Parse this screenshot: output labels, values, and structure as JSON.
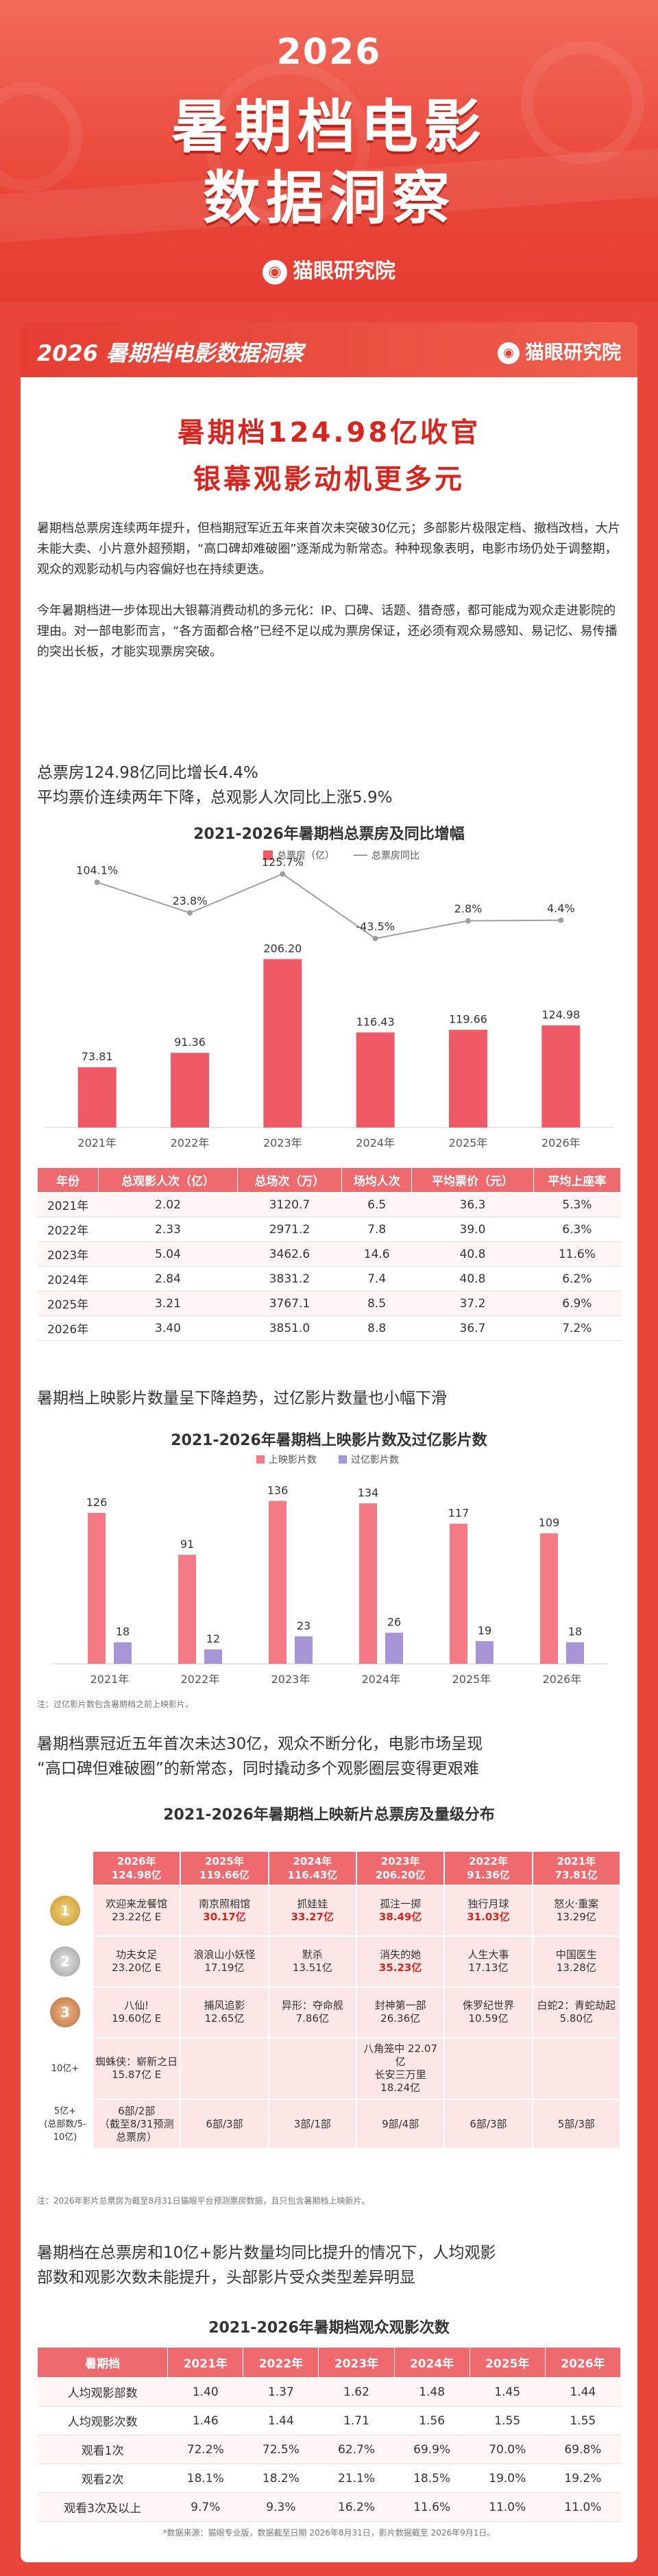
{
  "hero": {
    "year": "2026",
    "title_line1": "暑期档电影",
    "title_line2": "数据洞察",
    "brand": "猫眼研究院"
  },
  "card_header": {
    "title": "2026 暑期档电影数据洞察",
    "brand": "猫眼研究院"
  },
  "headline": {
    "line1": "暑期档124.98亿收官",
    "line2": "银幕观影动机更多元"
  },
  "intro": {
    "p1": "暑期档总票房连续两年提升，但档期冠军近五年来首次未突破30亿元；多部影片极限定档、撤档改档，大片未能大卖、小片意外超预期，“高口碑却难破圈”逐渐成为新常态。种种现象表明，电影市场仍处于调整期，观众的观影动机与内容偏好也在持续更迭。",
    "p2": "今年暑期档进一步体现出大银幕消费动机的多元化：IP、口碑、话题、猎奇感，都可能成为观众走进影院的理由。对一部电影而言，“各方面都合格”已经不足以成为票房保证，还必须有观众易感知、易记忆、易传播的突出长板，才能实现票房突破。"
  },
  "section1": {
    "line1": "总票房124.98亿同比增长4.4%",
    "line2": "平均票价连续两年下降，总观影人次同比上涨5.9%"
  },
  "chart_data": [
    {
      "type": "bar",
      "title": "2021-2026年暑期档总票房及同比增幅",
      "categories": [
        "2021年",
        "2022年",
        "2023年",
        "2024年",
        "2025年",
        "2026年"
      ],
      "series": [
        {
          "name": "总票房（亿）",
          "values": [
            73.81,
            91.36,
            206.2,
            116.43,
            119.66,
            124.98
          ],
          "labels": [
            "73.81",
            "91.36",
            "206.20",
            "116.43",
            "119.66",
            "124.98"
          ]
        },
        {
          "name": "总票房同比",
          "type": "line",
          "values": [
            104.1,
            23.8,
            125.7,
            -43.5,
            2.8,
            4.4
          ],
          "labels": [
            "104.1%",
            "23.8%",
            "125.7%",
            "-43.5%",
            "2.8%",
            "4.4%"
          ]
        }
      ],
      "legend": "top-center"
    },
    {
      "type": "table",
      "columns": [
        "年份",
        "总观影人次（亿）",
        "总场次（万）",
        "场均人次",
        "平均票价（元）",
        "平均上座率"
      ],
      "rows": [
        [
          "2021年",
          "2.02",
          "3120.7",
          "6.5",
          "36.3",
          "5.3%"
        ],
        [
          "2022年",
          "2.33",
          "2971.2",
          "7.8",
          "39.0",
          "6.3%"
        ],
        [
          "2023年",
          "5.04",
          "3462.6",
          "14.6",
          "40.8",
          "11.6%"
        ],
        [
          "2024年",
          "2.84",
          "3831.2",
          "7.4",
          "40.8",
          "6.2%"
        ],
        [
          "2025年",
          "3.21",
          "3767.1",
          "8.5",
          "37.2",
          "6.9%"
        ],
        [
          "2026年",
          "3.40",
          "3851.0",
          "8.8",
          "36.7",
          "7.2%"
        ]
      ]
    },
    {
      "type": "bar",
      "title": "2021-2026年暑期档上映影片数及过亿影片数",
      "categories": [
        "2021年",
        "2022年",
        "2023年",
        "2024年",
        "2025年",
        "2026年"
      ],
      "series": [
        {
          "name": "上映影片数",
          "values": [
            126,
            91,
            136,
            134,
            117,
            109
          ]
        },
        {
          "name": "过亿影片数",
          "values": [
            18,
            12,
            23,
            26,
            19,
            18
          ]
        }
      ],
      "legend": "top-center"
    },
    {
      "type": "table",
      "title": "2021-2026年暑期档观众观影次数",
      "columns": [
        "暑期档",
        "2021年",
        "2022年",
        "2023年",
        "2024年",
        "2025年",
        "2026年"
      ],
      "rows": [
        [
          "人均观影部数",
          "1.40",
          "1.37",
          "1.62",
          "1.48",
          "1.45",
          "1.44"
        ],
        [
          "人均观影次数",
          "1.46",
          "1.44",
          "1.71",
          "1.56",
          "1.55",
          "1.55"
        ],
        [
          "观看1次",
          "72.2%",
          "72.5%",
          "62.7%",
          "69.9%",
          "70.0%",
          "69.8%"
        ],
        [
          "观看2次",
          "18.1%",
          "18.2%",
          "21.1%",
          "18.5%",
          "19.0%",
          "19.2%"
        ],
        [
          "观看3次及以上",
          "9.7%",
          "9.3%",
          "16.2%",
          "11.6%",
          "11.0%",
          "11.0%"
        ]
      ]
    }
  ],
  "chart2_note": "注：过亿影片数包含暑期档之前上映影片。",
  "section2": {
    "line1": "暑期档上映影片数量呈下降趋势，过亿影片数量也小幅下滑"
  },
  "section3": {
    "line1": "暑期档票冠近五年首次未达30亿，观众不断分化，电影市场呈现",
    "line2": "“高口碑但难破圈”的新常态，同时撬动多个观影圈层变得更艰难"
  },
  "distribution": {
    "title": "2021-2026年暑期档上映新片总票房及量级分布",
    "headers": [
      {
        "year": "2026年",
        "total": "124.98亿"
      },
      {
        "year": "2025年",
        "total": "119.66亿"
      },
      {
        "year": "2024年",
        "total": "116.43亿"
      },
      {
        "year": "2023年",
        "total": "206.20亿"
      },
      {
        "year": "2022年",
        "total": "91.36亿"
      },
      {
        "year": "2021年",
        "total": "73.81亿"
      }
    ],
    "medals": [
      "1",
      "2",
      "3"
    ],
    "rank1": [
      {
        "name": "欢迎来龙餐馆",
        "value": "23.22亿 E",
        "hl": false
      },
      {
        "name": "南京照相馆",
        "value": "30.17亿",
        "hl": true
      },
      {
        "name": "抓娃娃",
        "value": "33.27亿",
        "hl": true
      },
      {
        "name": "孤注一掷",
        "value": "38.49亿",
        "hl": true
      },
      {
        "name": "独行月球",
        "value": "31.03亿",
        "hl": true
      },
      {
        "name": "怒火·重案",
        "value": "13.29亿",
        "hl": false
      }
    ],
    "rank2": [
      {
        "name": "功夫女足",
        "value": "23.20亿 E"
      },
      {
        "name": "浪浪山小妖怪",
        "value": "17.19亿"
      },
      {
        "name": "默杀",
        "value": "13.51亿"
      },
      {
        "name": "消失的她",
        "value": "35.23亿",
        "hl": true
      },
      {
        "name": "人生大事",
        "value": "17.13亿"
      },
      {
        "name": "中国医生",
        "value": "13.28亿"
      }
    ],
    "rank3": [
      {
        "name": "八仙!",
        "value": "19.60亿 E"
      },
      {
        "name": "捕风追影",
        "value": "12.65亿"
      },
      {
        "name": "异形：夺命舰",
        "value": "7.86亿"
      },
      {
        "name": "封神第一部",
        "value": "26.36亿"
      },
      {
        "name": "侏罗纪世界",
        "value": "10.59亿"
      },
      {
        "name": "白蛇2：青蛇劫起",
        "value": "5.80亿"
      }
    ],
    "row10_label": "10亿+",
    "row10": [
      "蜘蛛侠：崭新之日\n15.87亿 E",
      "",
      "",
      "八角笼中 22.07亿\n长安三万里 18.24亿",
      "",
      ""
    ],
    "row5_label": "5亿+\n(总部数/5-10亿)",
    "row5": [
      "6部/2部\n（截至8/31预测总票房）",
      "6部/3部",
      "3部/1部",
      "9部/4部",
      "6部/3部",
      "5部/3部"
    ],
    "note": "注：2026年影片总票房为截至8月31日猫眼平台预测票房数据，且只包含暑期档上映新片。"
  },
  "section4": {
    "line1": "暑期档在总票房和10亿+影片数量均同比提升的情况下，人均观影",
    "line2": "部数和观影次数未能提升，头部影片受众类型差异明显"
  },
  "footnote": "*数据来源：猫眼专业版，数据截至日期 2026年8月31日，影片数据截至 2026年9月1日。"
}
